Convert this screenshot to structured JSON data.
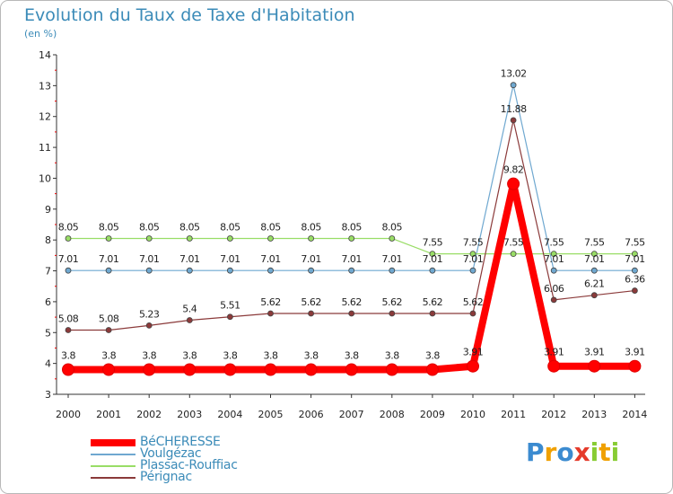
{
  "header": {
    "title": "Evolution du Taux de Taxe d'Habitation",
    "subtitle": "(en %)"
  },
  "chart_data": {
    "type": "line",
    "title": "Evolution du Taux de Taxe d'Habitation",
    "ylabel": "(en %)",
    "xlabel": "",
    "x": [
      "2000",
      "2001",
      "2002",
      "2003",
      "2004",
      "2005",
      "2006",
      "2007",
      "2008",
      "2009",
      "2010",
      "2011",
      "2012",
      "2013",
      "2014"
    ],
    "ylim": [
      3,
      14
    ],
    "yticks": [
      3,
      4,
      5,
      6,
      7,
      8,
      9,
      10,
      11,
      12,
      13,
      14
    ],
    "grid": false,
    "legend_position": "bottom-left",
    "series": [
      {
        "name": "BéCHERESSE",
        "color": "#ff0000",
        "values": [
          3.8,
          3.8,
          3.8,
          3.8,
          3.8,
          3.8,
          3.8,
          3.8,
          3.8,
          3.8,
          3.91,
          9.82,
          3.91,
          3.91,
          3.91
        ],
        "labels": [
          "3.8",
          "3.8",
          "3.8",
          "3.8",
          "3.8",
          "3.8",
          "3.8",
          "3.8",
          "3.8",
          "3.8",
          "3.91",
          "9.82",
          "3.91",
          "3.91",
          "3.91"
        ]
      },
      {
        "name": "Voulgézac",
        "color": "#6fa8d0",
        "values": [
          7.01,
          7.01,
          7.01,
          7.01,
          7.01,
          7.01,
          7.01,
          7.01,
          7.01,
          7.01,
          7.01,
          13.02,
          7.01,
          7.01,
          7.01
        ],
        "labels": [
          "7.01",
          "7.01",
          "7.01",
          "7.01",
          "7.01",
          "7.01",
          "7.01",
          "7.01",
          "7.01",
          "7.01",
          "7.01",
          "13.02",
          "7.01",
          "7.01",
          "7.01"
        ]
      },
      {
        "name": "Plassac-Rouffiac",
        "color": "#99dd66",
        "values": [
          8.05,
          8.05,
          8.05,
          8.05,
          8.05,
          8.05,
          8.05,
          8.05,
          8.05,
          7.55,
          7.55,
          7.55,
          7.55,
          7.55,
          7.55
        ],
        "labels": [
          "8.05",
          "8.05",
          "8.05",
          "8.05",
          "8.05",
          "8.05",
          "8.05",
          "8.05",
          "8.05",
          "7.55",
          "7.55",
          "7.55",
          "7.55",
          "7.55",
          "7.55"
        ]
      },
      {
        "name": "Pérignac",
        "color": "#8b3a3a",
        "values": [
          5.08,
          5.08,
          5.23,
          5.4,
          5.51,
          5.62,
          5.62,
          5.62,
          5.62,
          5.62,
          5.62,
          11.88,
          6.06,
          6.21,
          6.36
        ],
        "labels": [
          "5.08",
          "5.08",
          "5.23",
          "5.4",
          "5.51",
          "5.62",
          "5.62",
          "5.62",
          "5.62",
          "5.62",
          "5.62",
          "11.88",
          "6.06",
          "6.21",
          "6.36"
        ]
      }
    ]
  },
  "logo": {
    "letters": [
      "P",
      "r",
      "o",
      "x",
      "i",
      "t",
      "i"
    ],
    "colors": [
      "#3b8bd0",
      "#f0a000",
      "#3b8bd0",
      "#e53b2b",
      "#88cc33",
      "#f0a000",
      "#88cc33"
    ]
  }
}
